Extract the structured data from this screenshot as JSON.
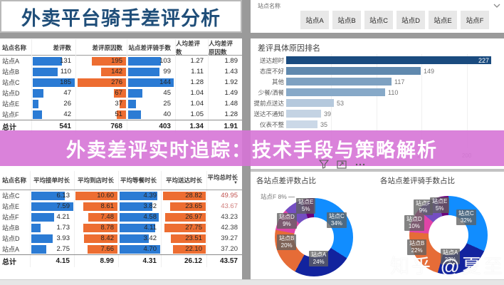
{
  "header": {
    "title": "外卖平台骑手差评分析"
  },
  "banner": {
    "text": "外卖差评实时追踪：技术手段与策略解析"
  },
  "slicer": {
    "label": "站点名称",
    "buttons": [
      "站点A",
      "站点B",
      "站点C",
      "站点D",
      "站点E",
      "站点F"
    ]
  },
  "top_table": {
    "headers": [
      "站点名称",
      "差评数",
      "差评原因数",
      "站点差评骑手数",
      "人均差评数",
      "人均差评原因数"
    ],
    "rows": [
      [
        "站点A",
        "131",
        "195",
        "103",
        "1.27",
        "1.89"
      ],
      [
        "站点B",
        "110",
        "142",
        "99",
        "1.11",
        "1.43"
      ],
      [
        "站点C",
        "185",
        "276",
        "144",
        "1.28",
        "1.92"
      ],
      [
        "站点D",
        "47",
        "67",
        "45",
        "1.04",
        "1.49"
      ],
      [
        "站点E",
        "26",
        "37",
        "25",
        "1.04",
        "1.48"
      ],
      [
        "站点F",
        "42",
        "51",
        "40",
        "1.05",
        "1.28"
      ]
    ],
    "total": [
      "总计",
      "541",
      "768",
      "403",
      "1.34",
      "1.91"
    ]
  },
  "bottom_table": {
    "headers": [
      "站点名称",
      "平均接单时长",
      "平均到店时长",
      "平均等餐时长",
      "平均送达时长",
      "平均总时长"
    ],
    "sort_icon": "▼",
    "rows": [
      [
        "站点C",
        "6.13",
        "10.60",
        "4.39",
        "28.82",
        "49.95"
      ],
      [
        "站点E",
        "7.59",
        "8.61",
        "3.82",
        "23.65",
        "43.67"
      ],
      [
        "站点F",
        "4.21",
        "7.48",
        "4.58",
        "26.97",
        "43.23"
      ],
      [
        "站点B",
        "1.73",
        "8.78",
        "4.11",
        "27.75",
        "42.38"
      ],
      [
        "站点D",
        "3.93",
        "8.42",
        "3.42",
        "23.51",
        "39.27"
      ],
      [
        "站点A",
        "2.75",
        "7.66",
        "4.70",
        "22.10",
        "37.20"
      ]
    ],
    "total_colors": [
      "#C0504D",
      "#D07E7C",
      "#3d3d3d",
      "#3d3d3d",
      "#3d3d3d",
      "#3d3d3d"
    ],
    "total": [
      "总计",
      "4.15",
      "8.99",
      "4.31",
      "26.12",
      "43.57"
    ]
  },
  "chart_data": [
    {
      "type": "bar",
      "orientation": "horizontal",
      "title": "差评具体原因排名",
      "categories": [
        "送达超时",
        "态度不好",
        "其他",
        "少餐/洒餐",
        "提前点送达",
        "送达不通知",
        "仪表不整"
      ],
      "values": [
        227,
        149,
        117,
        110,
        53,
        39,
        35
      ],
      "x_ticks": [
        0,
        50,
        100,
        150,
        200
      ],
      "xlim": [
        0,
        235
      ],
      "bar_colors": [
        "#1A4B7F",
        "#6089AE",
        "#7EA1C1",
        "#87A9C8",
        "#B5C9DD",
        "#C4D3E3",
        "#CBD8E7"
      ]
    },
    {
      "type": "pie",
      "donut": true,
      "title": "各站点差评数占比",
      "slices": [
        {
          "label": "站点C",
          "pct": 34
        },
        {
          "label": "站点A",
          "pct": 24
        },
        {
          "label": "站点B",
          "pct": 20
        },
        {
          "label": "站点D",
          "pct": 9
        },
        {
          "label": "站点F",
          "pct": 8,
          "outside": true
        },
        {
          "label": "站点E",
          "pct": 5
        }
      ]
    },
    {
      "type": "pie",
      "donut": true,
      "title": "各站点差评骑手数占比",
      "slices": [
        {
          "label": "站点C",
          "pct": 32
        },
        {
          "label": "站点A",
          "pct": 23
        },
        {
          "label": "站点B",
          "pct": 22
        },
        {
          "label": "站点D",
          "pct": 10
        },
        {
          "label": "站点F",
          "pct": 9
        },
        {
          "label": "站点E",
          "pct": 5
        }
      ]
    }
  ],
  "colors": {
    "table_bar_blue": "#2B7BD4",
    "table_bar_orange": "#ED6D31",
    "title_blue": "#1F4E79",
    "banner_pink": "#D674D6",
    "station_colors": {
      "站点A": "#12239E",
      "站点B": "#E66C37",
      "站点C": "#118DFF",
      "站点D": "#E044A7",
      "站点E": "#6B007B",
      "站点F": "#744EC2"
    }
  },
  "toolbar": {
    "icons": [
      "filter-icon",
      "focus-mode-icon",
      "more-options-icon"
    ]
  },
  "watermark": {
    "text": "知乎 @夏至"
  }
}
